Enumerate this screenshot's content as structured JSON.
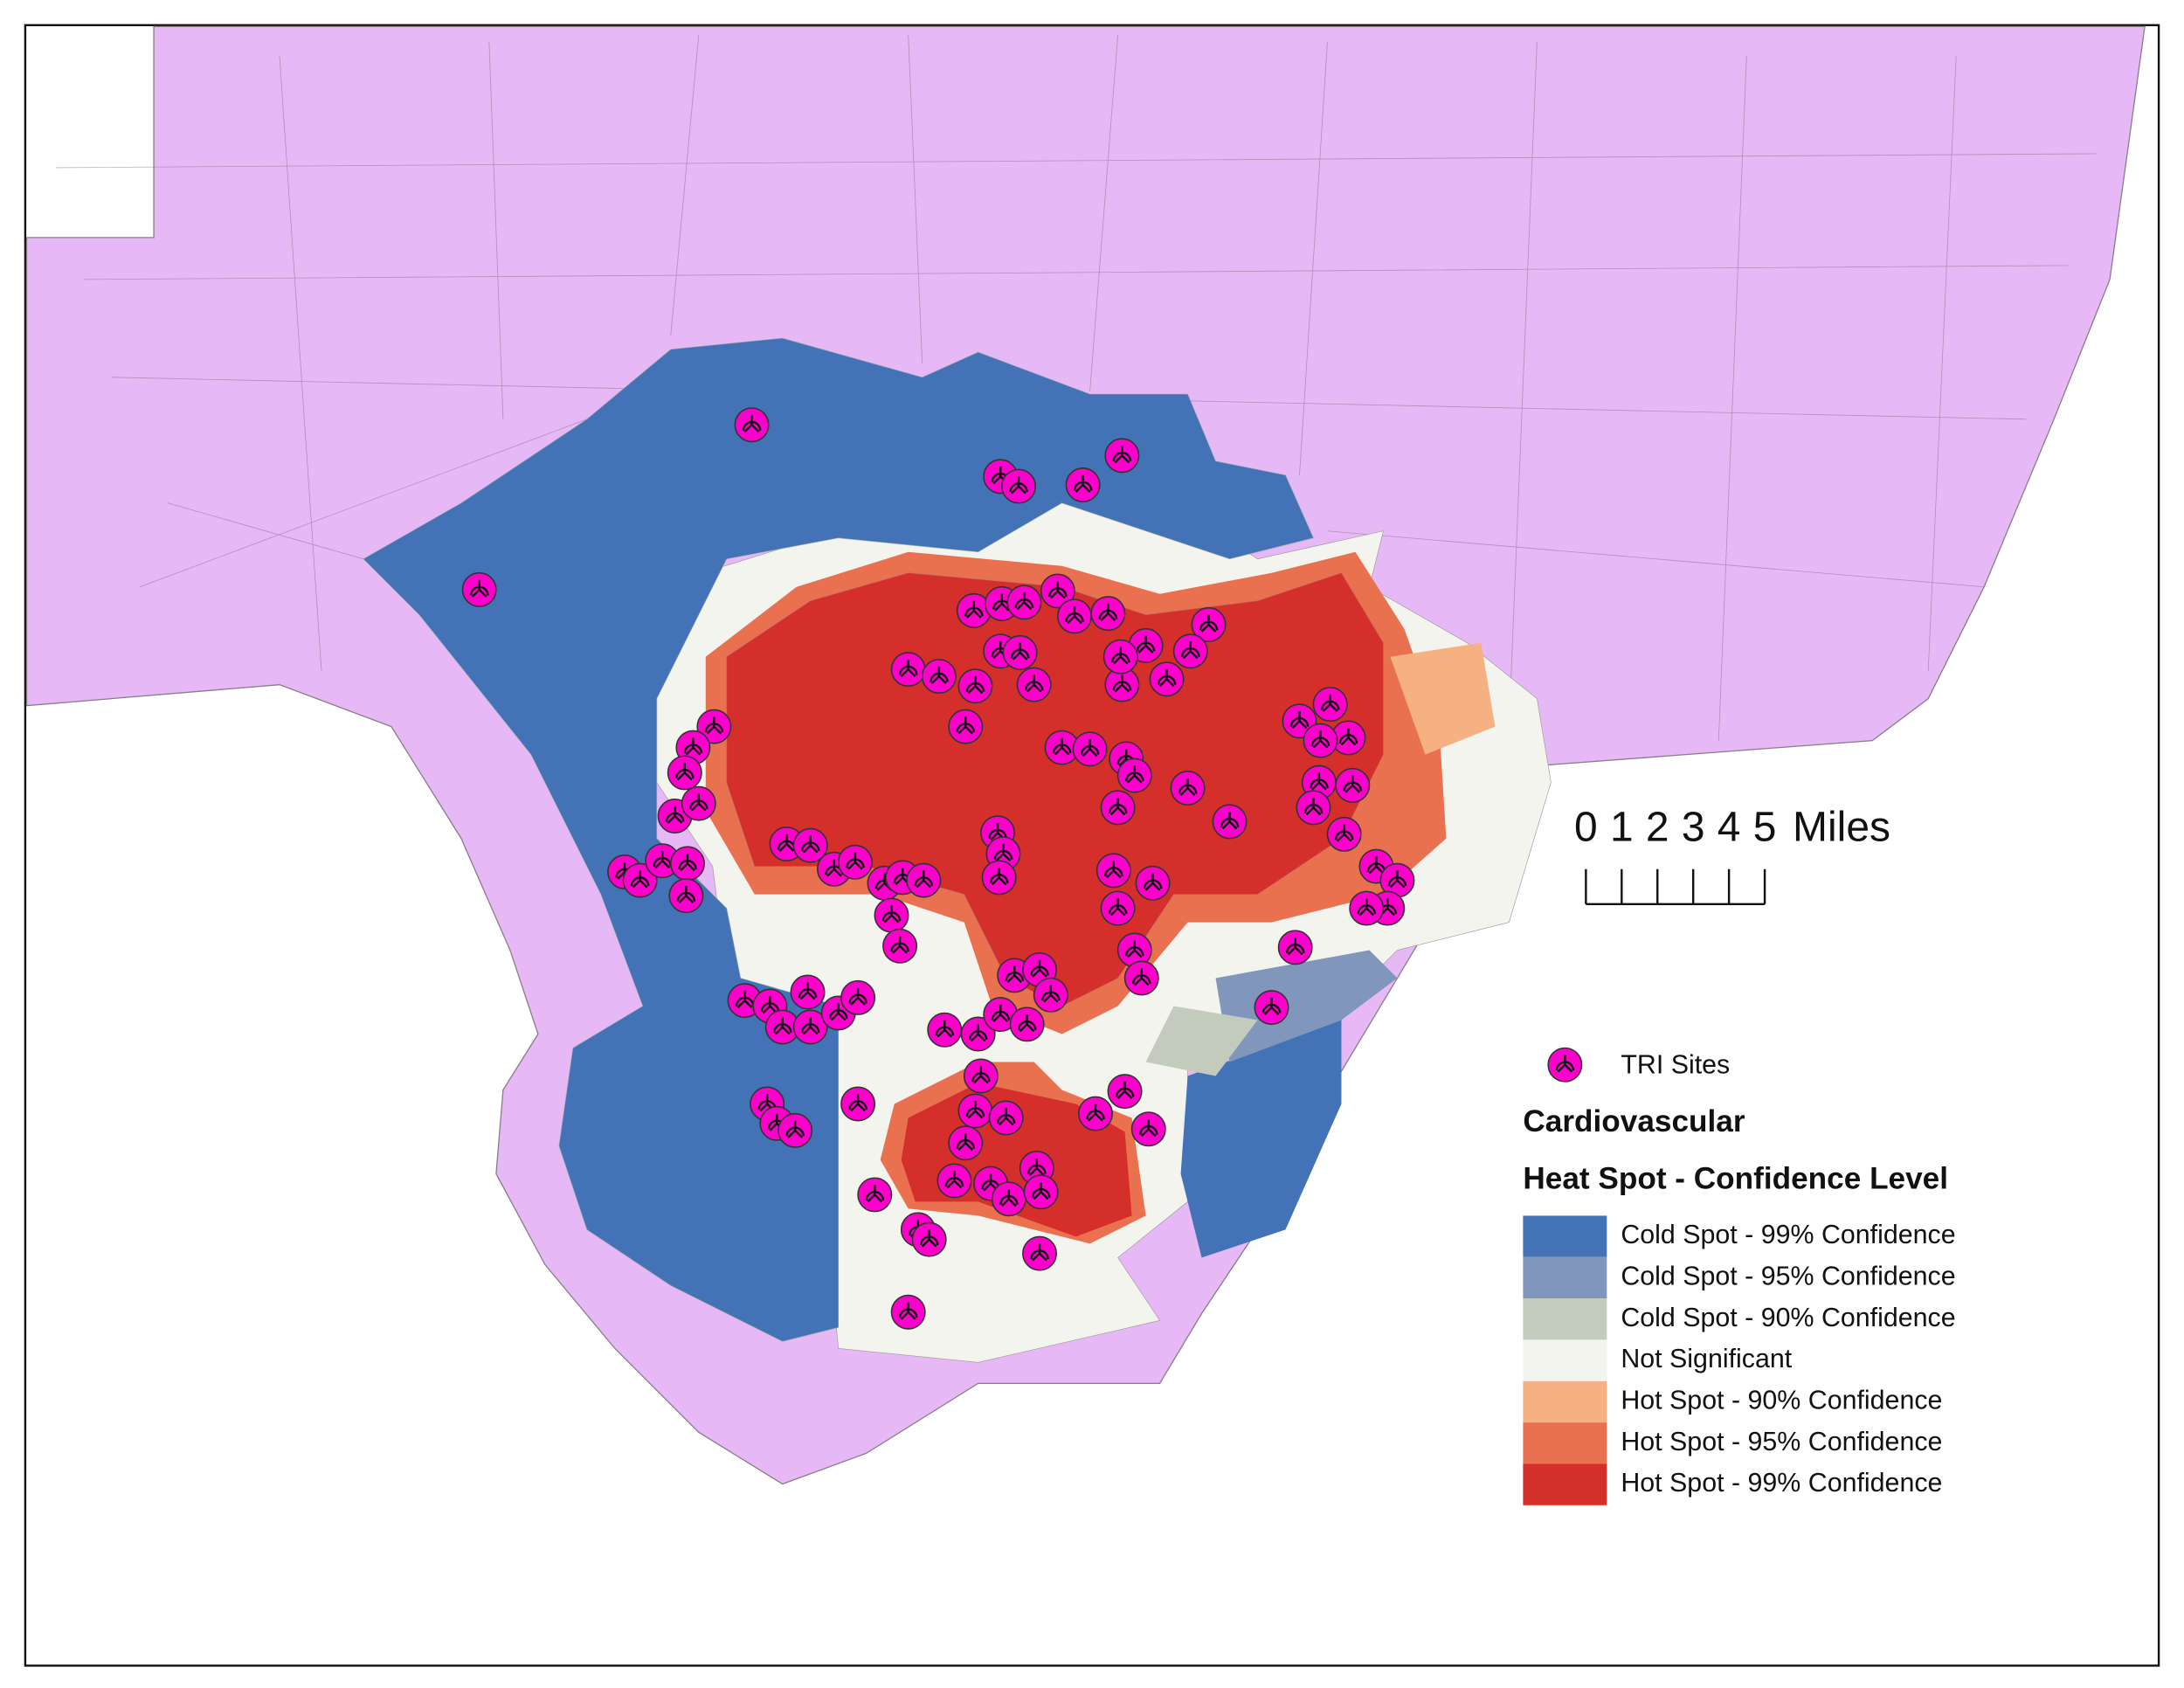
{
  "legend": {
    "tri_label": "TRI Sites",
    "tri_color": "#ff00cc",
    "title": "Cardiovascular",
    "subtitle": "Heat Spot - Confidence Level",
    "items": [
      {
        "label": "Cold Spot - 99% Confidence",
        "color": "#4372b7"
      },
      {
        "label": "Cold Spot - 95% Confidence",
        "color": "#8097bb"
      },
      {
        "label": "Cold Spot - 90% Confidence",
        "color": "#c2cbbc"
      },
      {
        "label": "Not Significant",
        "color": "#f4f4ef"
      },
      {
        "label": "Hot Spot - 90% Confidence",
        "color": "#f6b183"
      },
      {
        "label": "Hot Spot - 95% Confidence",
        "color": "#ea7150"
      },
      {
        "label": "Hot Spot - 99% Confidence",
        "color": "#d42f2a"
      }
    ]
  },
  "scale_bar": {
    "ticks": [
      0,
      1,
      2,
      3,
      4,
      5
    ],
    "unit": "Miles"
  }
}
